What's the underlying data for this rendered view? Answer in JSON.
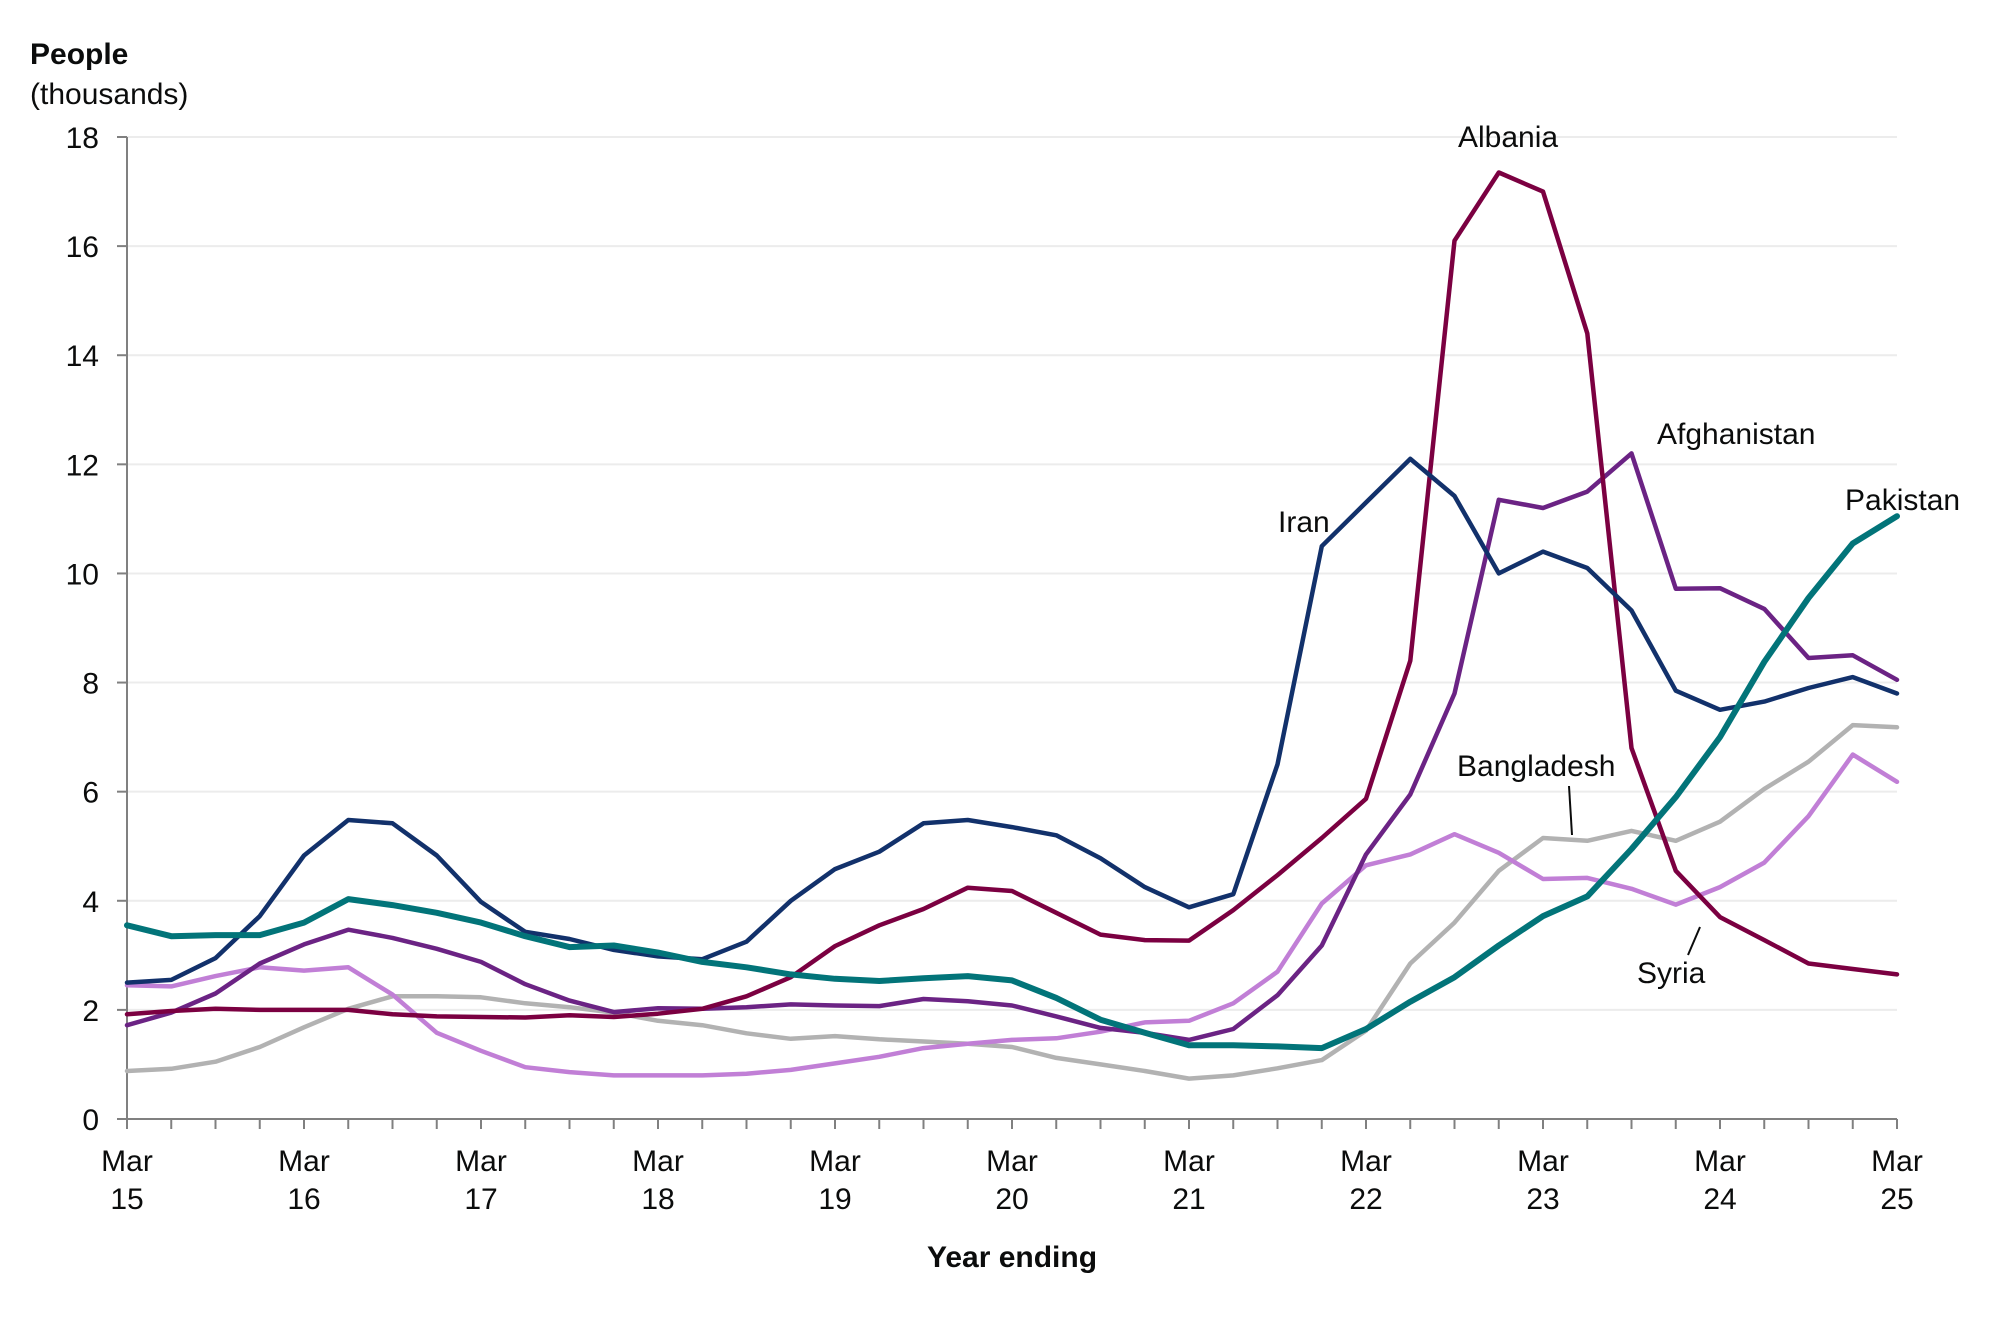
{
  "chart_data": {
    "type": "line",
    "title": "",
    "ylabel": "People",
    "ylabel_sub": "(thousands)",
    "xlabel": "Year ending",
    "ylim": [
      0,
      18
    ],
    "yticks": [
      0,
      2,
      4,
      6,
      8,
      10,
      12,
      14,
      16,
      18
    ],
    "grid": true,
    "x": [
      "Mar 15",
      "Jun 15",
      "Sep 15",
      "Dec 15",
      "Mar 16",
      "Jun 16",
      "Sep 16",
      "Dec 16",
      "Mar 17",
      "Jun 17",
      "Sep 17",
      "Dec 17",
      "Mar 18",
      "Jun 18",
      "Sep 18",
      "Dec 18",
      "Mar 19",
      "Jun 19",
      "Sep 19",
      "Dec 19",
      "Mar 20",
      "Jun 20",
      "Sep 20",
      "Dec 20",
      "Mar 21",
      "Jun 21",
      "Sep 21",
      "Dec 21",
      "Mar 22",
      "Jun 22",
      "Sep 22",
      "Dec 22",
      "Mar 23",
      "Jun 23",
      "Sep 23",
      "Dec 23",
      "Mar 24",
      "Jun 24",
      "Sep 24",
      "Dec 24",
      "Mar 25"
    ],
    "xtick_labels": [
      {
        "line1": "Mar",
        "line2": "15"
      },
      {
        "line1": "Mar",
        "line2": "16"
      },
      {
        "line1": "Mar",
        "line2": "17"
      },
      {
        "line1": "Mar",
        "line2": "18"
      },
      {
        "line1": "Mar",
        "line2": "19"
      },
      {
        "line1": "Mar",
        "line2": "20"
      },
      {
        "line1": "Mar",
        "line2": "21"
      },
      {
        "line1": "Mar",
        "line2": "22"
      },
      {
        "line1": "Mar",
        "line2": "23"
      },
      {
        "line1": "Mar",
        "line2": "24"
      },
      {
        "line1": "Mar",
        "line2": "25"
      }
    ],
    "series": [
      {
        "name": "Bangladesh",
        "color": "#b2b2b2",
        "values": [
          0.88,
          0.92,
          1.05,
          1.32,
          1.68,
          2.02,
          2.25,
          2.25,
          2.23,
          2.12,
          2.05,
          1.95,
          1.8,
          1.72,
          1.57,
          1.47,
          1.52,
          1.46,
          1.42,
          1.38,
          1.32,
          1.12,
          1.0,
          0.88,
          0.74,
          0.8,
          0.93,
          1.08,
          1.62,
          2.85,
          3.6,
          4.55,
          5.15,
          5.1,
          5.28,
          5.1,
          5.45,
          6.05,
          6.55,
          7.22,
          7.18
        ]
      },
      {
        "name": "Syria",
        "color": "#c17fd6",
        "values": [
          2.45,
          2.43,
          2.62,
          2.78,
          2.72,
          2.78,
          2.28,
          1.58,
          1.25,
          0.95,
          0.86,
          0.8,
          0.8,
          0.8,
          0.83,
          0.9,
          1.02,
          1.14,
          1.3,
          1.38,
          1.45,
          1.48,
          1.6,
          1.77,
          1.8,
          2.12,
          2.7,
          3.95,
          4.65,
          4.85,
          5.22,
          4.88,
          4.4,
          4.42,
          4.22,
          3.93,
          4.25,
          4.7,
          5.55,
          6.68,
          6.18
        ]
      },
      {
        "name": "Afghanistan",
        "color": "#6b2384",
        "values": [
          1.72,
          1.95,
          2.3,
          2.85,
          3.2,
          3.47,
          3.32,
          3.12,
          2.88,
          2.47,
          2.17,
          1.96,
          2.03,
          2.02,
          2.05,
          2.1,
          2.08,
          2.07,
          2.2,
          2.16,
          2.08,
          1.88,
          1.67,
          1.58,
          1.45,
          1.65,
          2.27,
          3.18,
          4.85,
          5.95,
          7.8,
          11.35,
          11.2,
          11.5,
          12.2,
          9.72,
          9.73,
          9.35,
          8.45,
          8.5,
          8.05
        ]
      },
      {
        "name": "Albania",
        "color": "#7b0041",
        "values": [
          1.92,
          1.98,
          2.02,
          2.0,
          2.0,
          2.0,
          1.92,
          1.88,
          1.87,
          1.86,
          1.9,
          1.87,
          1.93,
          2.02,
          2.25,
          2.6,
          3.17,
          3.55,
          3.85,
          4.24,
          4.18,
          3.78,
          3.38,
          3.28,
          3.27,
          3.83,
          4.47,
          5.15,
          5.87,
          8.4,
          16.1,
          17.35,
          17.0,
          14.4,
          6.8,
          4.55,
          3.7,
          3.28,
          2.85,
          2.75,
          2.65
        ]
      },
      {
        "name": "Iran",
        "color": "#12316b",
        "values": [
          2.5,
          2.55,
          2.95,
          3.72,
          4.83,
          5.48,
          5.42,
          4.83,
          3.98,
          3.43,
          3.3,
          3.1,
          2.98,
          2.93,
          3.25,
          4.0,
          4.58,
          4.9,
          5.42,
          5.48,
          5.35,
          5.2,
          4.78,
          4.25,
          3.88,
          4.12,
          6.5,
          10.5,
          11.3,
          12.1,
          11.42,
          10.0,
          10.4,
          10.1,
          9.32,
          7.85,
          7.5,
          7.65,
          7.9,
          8.1,
          7.8
        ]
      },
      {
        "name": "Pakistan",
        "color": "#027479",
        "values": [
          3.55,
          3.35,
          3.37,
          3.37,
          3.6,
          4.03,
          3.92,
          3.78,
          3.6,
          3.35,
          3.15,
          3.18,
          3.05,
          2.88,
          2.78,
          2.65,
          2.57,
          2.53,
          2.58,
          2.62,
          2.54,
          2.22,
          1.82,
          1.58,
          1.35,
          1.35,
          1.33,
          1.3,
          1.65,
          2.15,
          2.6,
          3.18,
          3.72,
          4.08,
          4.95,
          5.9,
          7.0,
          8.38,
          9.55,
          10.55,
          11.05
        ]
      }
    ],
    "annotations": [
      {
        "text": "Albania",
        "series": "Albania"
      },
      {
        "text": "Iran",
        "series": "Iran"
      },
      {
        "text": "Afghanistan",
        "series": "Afghanistan"
      },
      {
        "text": "Pakistan",
        "series": "Pakistan"
      },
      {
        "text": "Bangladesh",
        "series": "Bangladesh"
      },
      {
        "text": "Syria",
        "series": "Syria"
      }
    ]
  }
}
